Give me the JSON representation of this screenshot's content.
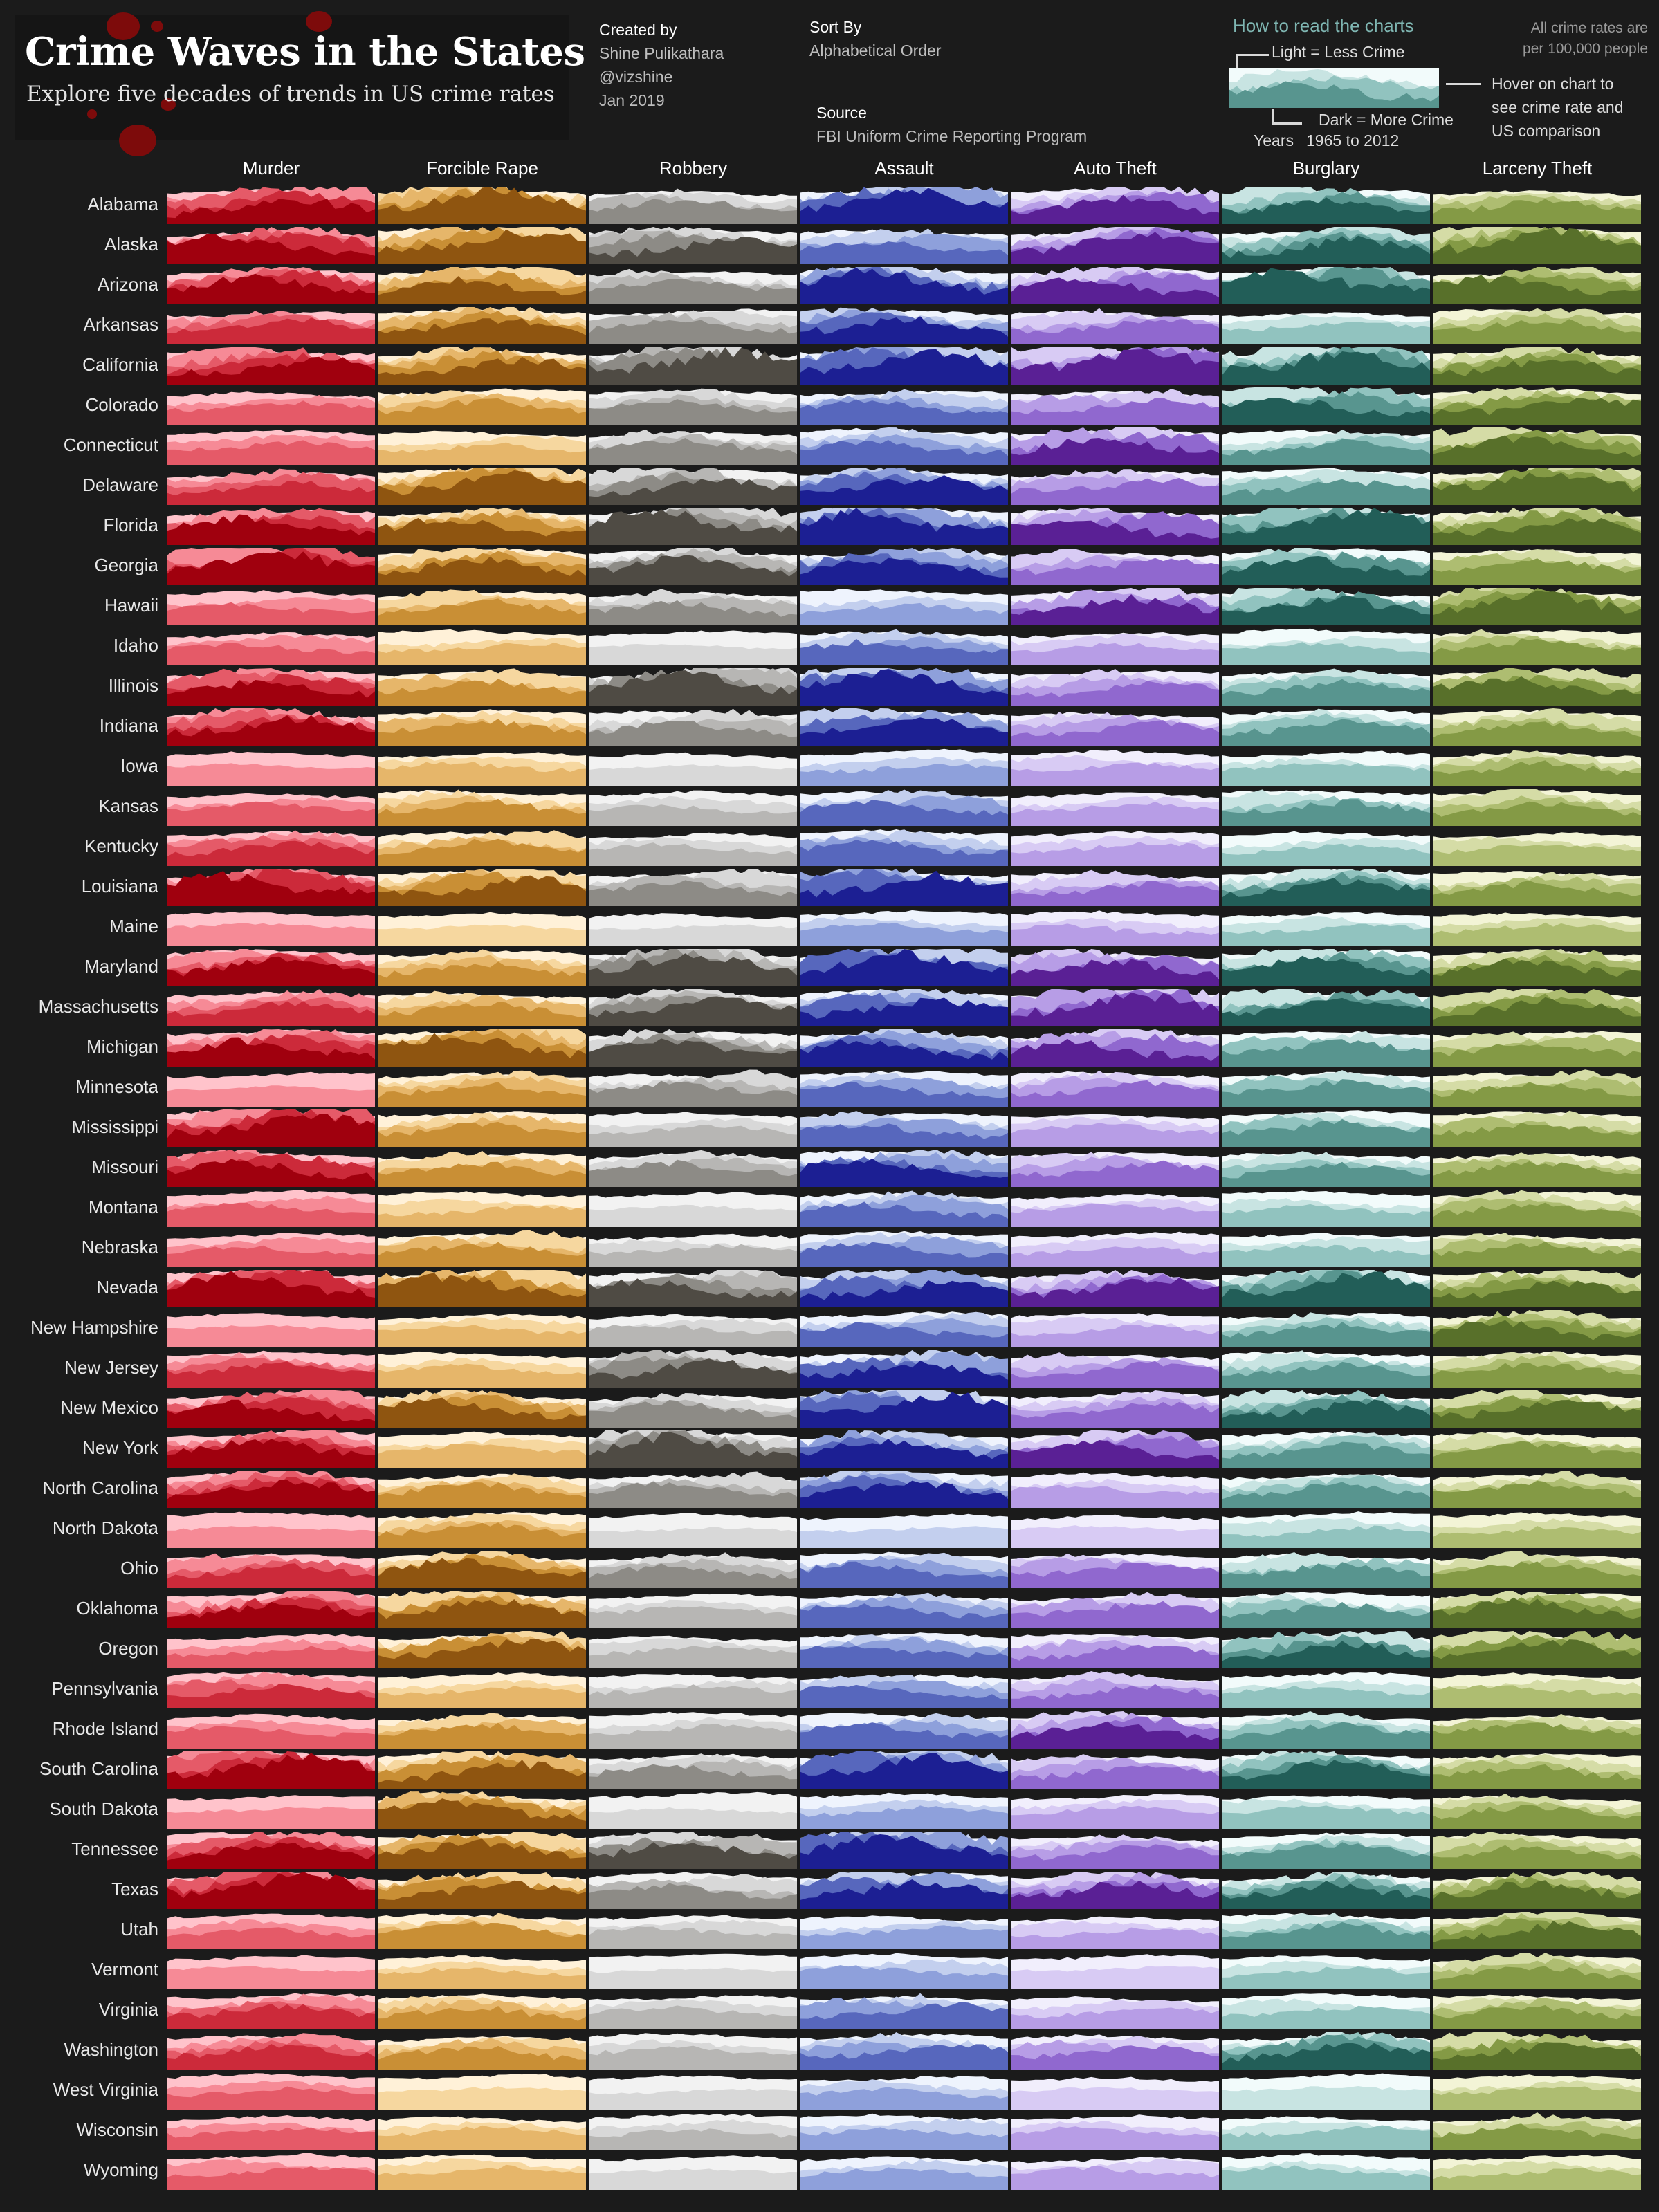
{
  "title": "Crime Waves in the States",
  "subtitle": "Explore five decades of trends in US crime rates",
  "credits": {
    "heading": "Created by",
    "author": "Shine Pulikathara",
    "handle": "@vizshine",
    "date": "Jan 2019"
  },
  "sort": {
    "heading": "Sort By",
    "value": "Alphabetical Order"
  },
  "source": {
    "heading": "Source",
    "value": "FBI Uniform Crime Reporting Program"
  },
  "legend": {
    "heading": "How to read the charts",
    "light": "Light = Less Crime",
    "dark": "Dark = More Crime",
    "years_label": "Years",
    "years_range": "1965 to 2012",
    "hover_line1": "Hover on chart to",
    "hover_line2": "see crime rate and",
    "hover_line3": "US comparison",
    "rates_line1": "All crime rates are",
    "rates_line2": "per 100,000 people"
  },
  "colors": {
    "background": "#1b1b1b",
    "Murder": [
      "#ffc3cb",
      "#f68a96",
      "#e55a68",
      "#cc2a3a",
      "#a0000e"
    ],
    "Forcible Rape": [
      "#fff1d8",
      "#f6d79f",
      "#e6b66a",
      "#c98f35",
      "#8f5510"
    ],
    "Robbery": [
      "#f2f2f2",
      "#d8d8d8",
      "#b7b6b4",
      "#8d8b86",
      "#4f4b44"
    ],
    "Assault": [
      "#eef3fd",
      "#c3cfee",
      "#8ea0db",
      "#5767bd",
      "#1c1f93"
    ],
    "Auto Theft": [
      "#f1eefc",
      "#d8cbf4",
      "#b79de6",
      "#9068cf",
      "#5a2095"
    ],
    "Burglary": [
      "#f2fbfb",
      "#c8e4e2",
      "#91c3bf",
      "#58958f",
      "#225e58"
    ],
    "Larceny Theft": [
      "#f3f4d6",
      "#d5dca6",
      "#aebd71",
      "#849a45",
      "#58702a"
    ]
  },
  "chart_data": {
    "type": "area",
    "layout": "small-multiples",
    "description_units": "crime rate per 100,000 people",
    "x_range": [
      1965,
      2012
    ],
    "columns": [
      "Murder",
      "Forcible Rape",
      "Robbery",
      "Assault",
      "Auto Theft",
      "Burglary",
      "Larceny Theft"
    ],
    "rows": [
      "Alabama",
      "Alaska",
      "Arizona",
      "Arkansas",
      "California",
      "Colorado",
      "Connecticut",
      "Delaware",
      "Florida",
      "Georgia",
      "Hawaii",
      "Idaho",
      "Illinois",
      "Indiana",
      "Iowa",
      "Kansas",
      "Kentucky",
      "Louisiana",
      "Maine",
      "Maryland",
      "Massachusetts",
      "Michigan",
      "Minnesota",
      "Mississippi",
      "Missouri",
      "Montana",
      "Nebraska",
      "Nevada",
      "New Hampshire",
      "New Jersey",
      "New Mexico",
      "New York",
      "North Carolina",
      "North Dakota",
      "Ohio",
      "Oklahoma",
      "Oregon",
      "Pennsylvania",
      "Rhode Island",
      "South Carolina",
      "South Dakota",
      "Tennessee",
      "Texas",
      "Utah",
      "Vermont",
      "Virginia",
      "Washington",
      "West Virginia",
      "Wisconsin",
      "Wyoming"
    ],
    "intensity_levels": [
      [
        3,
        4,
        2,
        4,
        3,
        3,
        2
      ],
      [
        3,
        4,
        3,
        2,
        4,
        3,
        4
      ],
      [
        3,
        3,
        2,
        4,
        3,
        4,
        3
      ],
      [
        2,
        3,
        2,
        3,
        2,
        1,
        2
      ],
      [
        3,
        3,
        4,
        4,
        4,
        4,
        3
      ],
      [
        1,
        2,
        2,
        2,
        2,
        3,
        3
      ],
      [
        1,
        1,
        2,
        2,
        3,
        2,
        3
      ],
      [
        2,
        4,
        3,
        3,
        2,
        2,
        4
      ],
      [
        3,
        3,
        4,
        4,
        3,
        4,
        3
      ],
      [
        4,
        3,
        3,
        3,
        2,
        3,
        2
      ],
      [
        1,
        2,
        2,
        1,
        3,
        3,
        4
      ],
      [
        1,
        1,
        0,
        2,
        1,
        1,
        2
      ],
      [
        3,
        2,
        4,
        4,
        2,
        2,
        3
      ],
      [
        3,
        2,
        2,
        3,
        2,
        2,
        2
      ],
      [
        0,
        1,
        0,
        1,
        1,
        1,
        2
      ],
      [
        1,
        2,
        1,
        2,
        1,
        2,
        2
      ],
      [
        2,
        2,
        1,
        2,
        1,
        1,
        1
      ],
      [
        4,
        3,
        2,
        4,
        2,
        3,
        2
      ],
      [
        0,
        0,
        0,
        1,
        1,
        1,
        1
      ],
      [
        3,
        2,
        4,
        4,
        3,
        3,
        3
      ],
      [
        2,
        2,
        3,
        3,
        4,
        3,
        3
      ],
      [
        3,
        4,
        3,
        3,
        3,
        2,
        2
      ],
      [
        0,
        2,
        2,
        2,
        2,
        2,
        2
      ],
      [
        4,
        2,
        1,
        2,
        1,
        2,
        2
      ],
      [
        3,
        2,
        2,
        3,
        2,
        2,
        2
      ],
      [
        1,
        1,
        0,
        2,
        1,
        1,
        2
      ],
      [
        1,
        2,
        1,
        2,
        1,
        1,
        2
      ],
      [
        4,
        4,
        3,
        3,
        3,
        4,
        3
      ],
      [
        0,
        1,
        1,
        2,
        1,
        2,
        3
      ],
      [
        2,
        1,
        3,
        3,
        2,
        2,
        2
      ],
      [
        3,
        3,
        2,
        4,
        2,
        3,
        3
      ],
      [
        3,
        1,
        4,
        3,
        3,
        2,
        2
      ],
      [
        3,
        2,
        2,
        3,
        1,
        2,
        2
      ],
      [
        0,
        2,
        0,
        0,
        0,
        1,
        1
      ],
      [
        2,
        3,
        2,
        2,
        2,
        2,
        2
      ],
      [
        3,
        3,
        1,
        2,
        2,
        2,
        3
      ],
      [
        1,
        3,
        1,
        2,
        2,
        3,
        3
      ],
      [
        2,
        1,
        1,
        2,
        2,
        1,
        1
      ],
      [
        1,
        2,
        1,
        2,
        3,
        2,
        2
      ],
      [
        4,
        3,
        2,
        4,
        2,
        3,
        2
      ],
      [
        0,
        3,
        0,
        1,
        1,
        1,
        2
      ],
      [
        3,
        3,
        3,
        4,
        2,
        2,
        2
      ],
      [
        4,
        3,
        2,
        3,
        3,
        3,
        3
      ],
      [
        1,
        2,
        1,
        1,
        1,
        2,
        3
      ],
      [
        0,
        1,
        0,
        1,
        0,
        1,
        2
      ],
      [
        2,
        2,
        1,
        2,
        1,
        1,
        2
      ],
      [
        2,
        2,
        1,
        2,
        2,
        3,
        3
      ],
      [
        1,
        0,
        0,
        1,
        0,
        0,
        1
      ],
      [
        1,
        1,
        1,
        1,
        1,
        1,
        2
      ],
      [
        1,
        1,
        0,
        1,
        1,
        1,
        1
      ]
    ]
  }
}
